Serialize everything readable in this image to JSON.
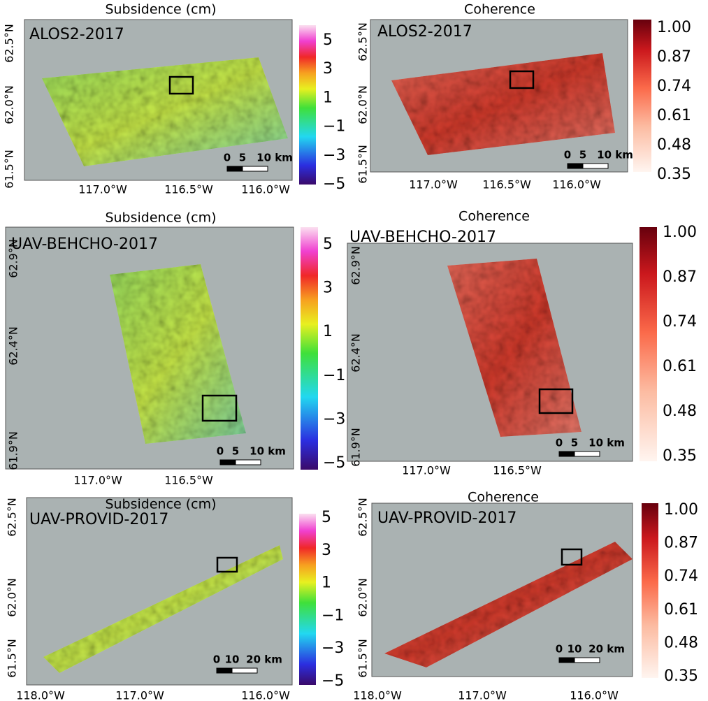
{
  "panels": [
    {
      "kind": "subsidence",
      "title": "Subsidence (cm)",
      "label": "ALOS2-2017",
      "colorbar_ticks": [
        "5",
        "3",
        "1",
        "−1",
        "−3",
        "−5"
      ],
      "lat_ticks": [
        "62.5°N",
        "62.0°N",
        "61.5°N"
      ],
      "lon_ticks": [
        "117.0°W",
        "116.5°W",
        "116.0°W"
      ],
      "scale": [
        "0",
        "5",
        "10 km"
      ]
    },
    {
      "kind": "coherence",
      "title": "Coherence",
      "label": "ALOS2-2017",
      "colorbar_ticks": [
        "1.00",
        "0.87",
        "0.74",
        "0.61",
        "0.48",
        "0.35"
      ],
      "lat_ticks": [
        "62.5°N",
        "62.0°N",
        "61.5°N"
      ],
      "lon_ticks": [
        "117.0°W",
        "116.5°W",
        "116.0°W"
      ],
      "scale": [
        "0",
        "5",
        "10 km"
      ]
    },
    {
      "kind": "subsidence",
      "title": "Subsidence (cm)",
      "label": "UAV-BEHCHO-2017",
      "colorbar_ticks": [
        "5",
        "3",
        "1",
        "−1",
        "−3",
        "−5"
      ],
      "lat_ticks": [
        "62.9°N",
        "62.4°N",
        "61.9°N"
      ],
      "lon_ticks": [
        "117.0°W",
        "116.5°W"
      ],
      "scale": [
        "0",
        "5",
        "10 km"
      ]
    },
    {
      "kind": "coherence",
      "title": "Coherence",
      "label": "UAV-BEHCHO-2017",
      "colorbar_ticks": [
        "1.00",
        "0.87",
        "0.74",
        "0.61",
        "0.48",
        "0.35"
      ],
      "lat_ticks": [
        "62.9°N",
        "62.4°N",
        "61.9°N"
      ],
      "lon_ticks": [
        "117.0°W",
        "116.5°W"
      ],
      "scale": [
        "0",
        "5",
        "10 km"
      ]
    },
    {
      "kind": "subsidence",
      "title": "Subsidence (cm)",
      "label": "UAV-PROVID-2017",
      "colorbar_ticks": [
        "5",
        "3",
        "1",
        "−1",
        "−3",
        "−5"
      ],
      "lat_ticks": [
        "62.5°N",
        "62.0°N",
        "61.5°N"
      ],
      "lon_ticks": [
        "118.0°W",
        "117.0°W",
        "116.0°W"
      ],
      "scale": [
        "0",
        "10",
        "20 km"
      ]
    },
    {
      "kind": "coherence",
      "title": "Coherence",
      "label": "UAV-PROVID-2017",
      "colorbar_ticks": [
        "1.00",
        "0.87",
        "0.74",
        "0.61",
        "0.48",
        "0.35"
      ],
      "lat_ticks": [
        "62.5°N",
        "62.0°N",
        "61.5°N"
      ],
      "lon_ticks": [
        "118.0°W",
        "117.0°W",
        "116.0°W"
      ],
      "scale": [
        "0",
        "10",
        "20 km"
      ]
    }
  ]
}
